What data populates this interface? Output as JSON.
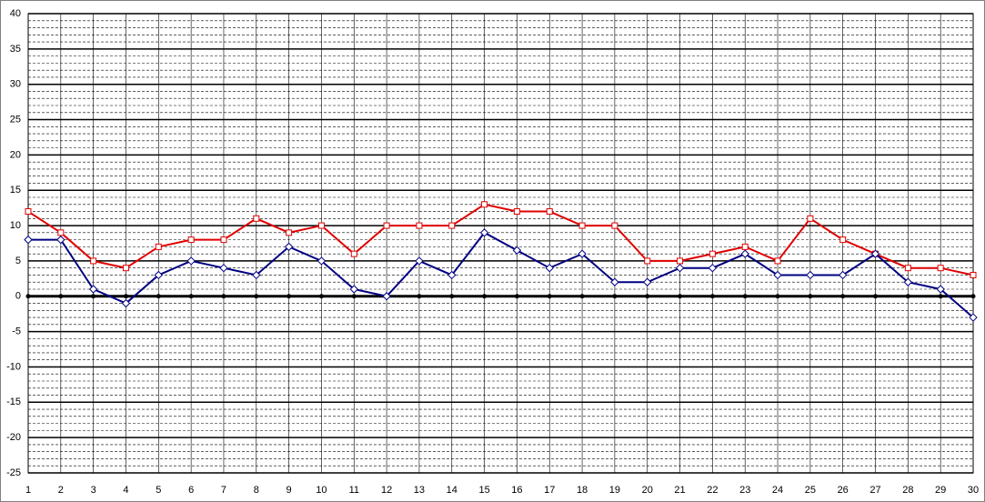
{
  "chart_data": {
    "type": "line",
    "categories": [
      "1",
      "2",
      "3",
      "4",
      "5",
      "6",
      "7",
      "8",
      "9",
      "10",
      "11",
      "12",
      "13",
      "14",
      "15",
      "16",
      "17",
      "18",
      "19",
      "20",
      "21",
      "22",
      "23",
      "24",
      "25",
      "26",
      "27",
      "28",
      "29",
      "30"
    ],
    "series": [
      {
        "color": "#e00000",
        "marker": "square",
        "values": [
          12,
          9,
          5,
          4,
          7,
          8,
          8,
          11,
          9,
          10,
          6,
          10,
          10,
          10,
          13,
          12,
          12,
          10,
          10,
          5,
          5,
          6,
          7,
          5,
          11,
          8,
          6,
          4,
          4,
          3
        ]
      },
      {
        "color": "#000080",
        "marker": "diamond",
        "values": [
          8,
          8,
          1,
          -1,
          3,
          5,
          4,
          3,
          7,
          5,
          1,
          0,
          5,
          3,
          9,
          6.5,
          4,
          6,
          2,
          2,
          4,
          4,
          6,
          3,
          3,
          3,
          6,
          2,
          1,
          -3
        ]
      }
    ],
    "ylim": [
      -25,
      40
    ],
    "yticks": [
      -25,
      -20,
      -15,
      -10,
      -5,
      0,
      5,
      10,
      15,
      20,
      25,
      30,
      35,
      40
    ],
    "grid": true,
    "minor_grid": true
  }
}
